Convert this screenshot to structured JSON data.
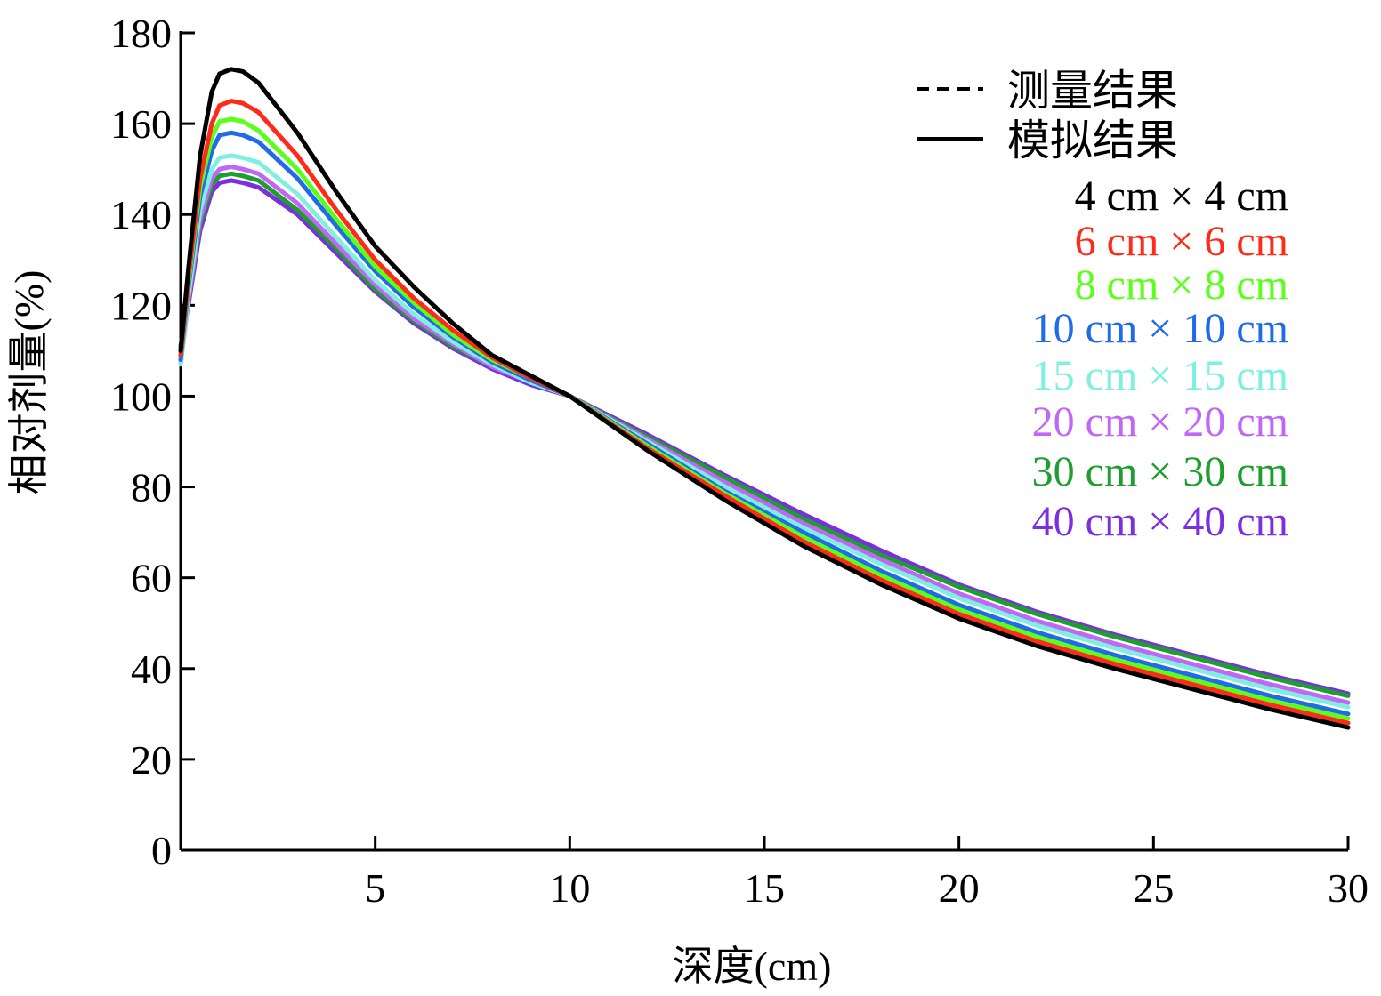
{
  "chart_data": {
    "type": "line",
    "xlabel": "深度(cm)",
    "ylabel": "相对剂量(%)",
    "xlim": [
      0,
      30
    ],
    "ylim": [
      0,
      180
    ],
    "x_ticks": [
      5,
      10,
      15,
      20,
      25,
      30
    ],
    "y_ticks": [
      0,
      20,
      40,
      60,
      80,
      100,
      120,
      140,
      160,
      180
    ],
    "grid": false,
    "legend_position": "top-right",
    "style_legend": [
      {
        "label": "测量结果",
        "dash": "dashed"
      },
      {
        "label": "模拟结果",
        "dash": "solid"
      }
    ],
    "x": [
      0,
      0.2,
      0.5,
      0.8,
      1.0,
      1.3,
      1.6,
      2,
      3,
      4,
      5,
      6,
      7,
      8,
      9,
      10,
      12,
      14,
      16,
      18,
      20,
      22,
      24,
      26,
      28,
      30
    ],
    "series": [
      {
        "name": "4 cm × 4 cm",
        "color": "#000000",
        "values": [
          110,
          128,
          153,
          167,
          171,
          172,
          171.5,
          169,
          158,
          145,
          133,
          124,
          116,
          109,
          104.5,
          100,
          88,
          77,
          67,
          58.5,
          51,
          45,
          40,
          35.5,
          31,
          27
        ]
      },
      {
        "name": "6 cm × 6 cm",
        "color": "#ff2a1a",
        "values": [
          109,
          126,
          148,
          160,
          164,
          165,
          164.5,
          162.5,
          153,
          141,
          130,
          121.5,
          114.5,
          108.5,
          104,
          100,
          88.5,
          78,
          68,
          59.5,
          52,
          46,
          41,
          36.5,
          32,
          28
        ]
      },
      {
        "name": "8 cm × 8 cm",
        "color": "#5aff1a",
        "values": [
          109,
          125,
          146,
          157,
          160.5,
          161,
          160.5,
          158.5,
          150,
          139,
          128.5,
          120.5,
          113.5,
          108,
          104,
          100,
          89,
          78.5,
          69,
          60.5,
          53,
          47,
          42,
          37.5,
          33,
          29
        ]
      },
      {
        "name": "10 cm × 10 cm",
        "color": "#1f6be8",
        "values": [
          108,
          124,
          144,
          154,
          157.5,
          158,
          157.5,
          156,
          148,
          137.5,
          127.5,
          119.5,
          113,
          107.5,
          103.5,
          100,
          89.5,
          79,
          70,
          61.5,
          54,
          48,
          43,
          38.5,
          34,
          30
        ]
      },
      {
        "name": "15 cm × 15 cm",
        "color": "#7ff0e0",
        "values": [
          107,
          122,
          141,
          150,
          152.5,
          153,
          152.5,
          151.5,
          144.5,
          135,
          125.5,
          118,
          112,
          107,
          103,
          100,
          90,
          80,
          71,
          63,
          55.5,
          49.5,
          44.5,
          40,
          35.5,
          31.5
        ]
      },
      {
        "name": "20 cm × 20 cm",
        "color": "#c167f5",
        "values": [
          107,
          121,
          139,
          148,
          150,
          150.5,
          150,
          149,
          142.5,
          133.5,
          124.5,
          117,
          111.5,
          106.5,
          103,
          100,
          90.5,
          81,
          72,
          64,
          56.5,
          50.5,
          45.5,
          41,
          36.5,
          32.5
        ]
      },
      {
        "name": "30 cm × 30 cm",
        "color": "#1e9e2e",
        "values": [
          111,
          121,
          138,
          146.5,
          148.5,
          149,
          148.5,
          147.5,
          141,
          132.5,
          123.5,
          116.5,
          111,
          106.5,
          103,
          100,
          91,
          82,
          73,
          65,
          58,
          52,
          47,
          42.5,
          38,
          34
        ]
      },
      {
        "name": "40 cm × 40 cm",
        "color": "#7a2fe0",
        "values": [
          111,
          120,
          136.5,
          145,
          147,
          147.5,
          147,
          146,
          140,
          131.5,
          123,
          116,
          110.5,
          106,
          102.5,
          100,
          91.5,
          82.5,
          74,
          66,
          58.5,
          52.5,
          47.5,
          43,
          38.5,
          34.5
        ]
      }
    ]
  }
}
